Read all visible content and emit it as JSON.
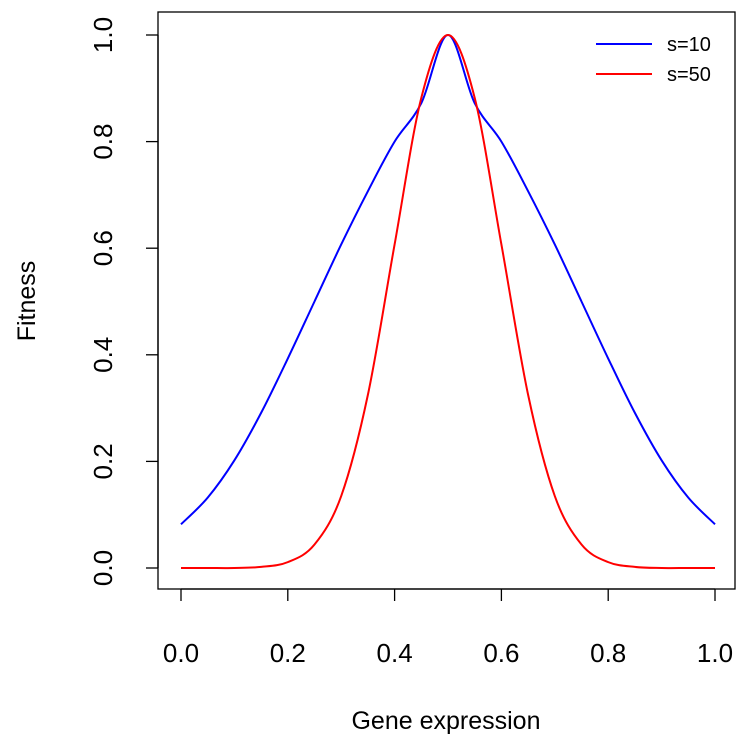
{
  "chart_data": {
    "type": "line",
    "title": "",
    "xlabel": "Gene expression",
    "ylabel": "Fitness",
    "xlim": [
      0.0,
      1.0
    ],
    "ylim": [
      0.0,
      1.0
    ],
    "x_ticks": [
      "0.0",
      "0.2",
      "0.4",
      "0.6",
      "0.8",
      "1.0"
    ],
    "y_ticks": [
      "0.0",
      "0.2",
      "0.4",
      "0.6",
      "0.8",
      "1.0"
    ],
    "grid": false,
    "legend_position": "top-right",
    "x": [
      0.0,
      0.05,
      0.1,
      0.15,
      0.2,
      0.25,
      0.3,
      0.35,
      0.4,
      0.45,
      0.5,
      0.55,
      0.6,
      0.65,
      0.7,
      0.75,
      0.8,
      0.85,
      0.9,
      0.95,
      1.0
    ],
    "series": [
      {
        "name": "s=10",
        "color": "#0000ff",
        "values": [
          0.082,
          0.132,
          0.202,
          0.291,
          0.393,
          0.5,
          0.607,
          0.707,
          0.8,
          0.872,
          1.0,
          0.872,
          0.8,
          0.707,
          0.607,
          0.5,
          0.393,
          0.291,
          0.202,
          0.132,
          0.082
        ]
      },
      {
        "name": "s=50",
        "color": "#ff0000",
        "values": [
          0.0,
          0.0,
          0.0,
          0.002,
          0.011,
          0.044,
          0.135,
          0.325,
          0.607,
          0.882,
          1.0,
          0.882,
          0.607,
          0.325,
          0.135,
          0.044,
          0.011,
          0.002,
          0.0,
          0.0,
          0.0
        ]
      }
    ]
  }
}
